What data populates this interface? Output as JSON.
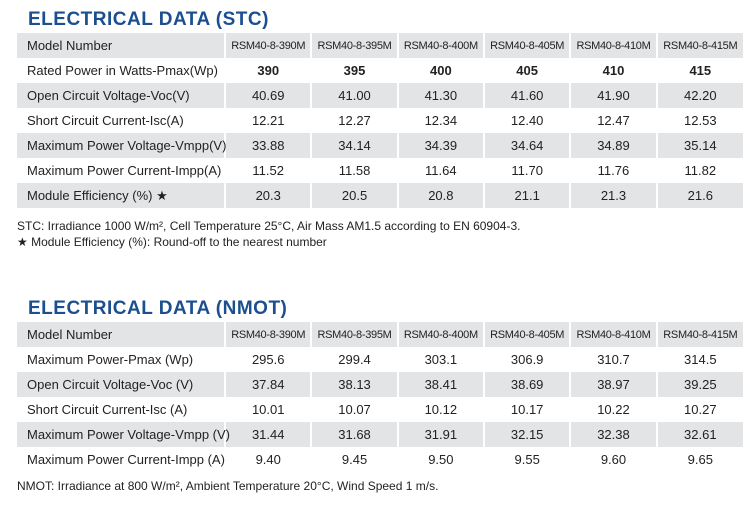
{
  "sections": [
    {
      "title": "ELECTRICAL DATA (STC)",
      "header": [
        "Model Number",
        "RSM40-8-390M",
        "RSM40-8-395M",
        "RSM40-8-400M",
        "RSM40-8-405M",
        "RSM40-8-410M",
        "RSM40-8-415M"
      ],
      "rows": [
        [
          "Rated Power in Watts-Pmax(Wp)",
          "390",
          "395",
          "400",
          "405",
          "410",
          "415"
        ],
        [
          "Open Circuit Voltage-Voc(V)",
          "40.69",
          "41.00",
          "41.30",
          "41.60",
          "41.90",
          "42.20"
        ],
        [
          "Short Circuit Current-Isc(A)",
          "12.21",
          "12.27",
          "12.34",
          "12.40",
          "12.47",
          "12.53"
        ],
        [
          "Maximum Power Voltage-Vmpp(V)",
          "33.88",
          "34.14",
          "34.39",
          "34.64",
          "34.89",
          "35.14"
        ],
        [
          "Maximum Power Current-Impp(A)",
          "11.52",
          "11.58",
          "11.64",
          "11.70",
          "11.76",
          "11.82"
        ],
        [
          "Module Efficiency (%) ★",
          "20.3",
          "20.5",
          "20.8",
          "21.1",
          "21.3",
          "21.6"
        ]
      ],
      "notes": [
        "STC: Irradiance 1000 W/m², Cell Temperature 25°C, Air Mass AM1.5 according to EN 60904-3.",
        "★ Module Efficiency (%): Round-off to the nearest number"
      ]
    },
    {
      "title": "ELECTRICAL DATA (NMOT)",
      "header": [
        "Model Number",
        "RSM40-8-390M",
        "RSM40-8-395M",
        "RSM40-8-400M",
        "RSM40-8-405M",
        "RSM40-8-410M",
        "RSM40-8-415M"
      ],
      "rows": [
        [
          "Maximum Power-Pmax (Wp)",
          "295.6",
          "299.4",
          "303.1",
          "306.9",
          "310.7",
          "314.5"
        ],
        [
          "Open Circuit Voltage-Voc (V)",
          "37.84",
          "38.13",
          "38.41",
          "38.69",
          "38.97",
          "39.25"
        ],
        [
          "Short Circuit Current-Isc (A)",
          "10.01",
          "10.07",
          "10.12",
          "10.17",
          "10.22",
          "10.27"
        ],
        [
          "Maximum Power Voltage-Vmpp (V)",
          "31.44",
          "31.68",
          "31.91",
          "32.15",
          "32.38",
          "32.61"
        ],
        [
          "Maximum Power Current-Impp (A)",
          "9.40",
          "9.45",
          "9.50",
          "9.55",
          "9.60",
          "9.65"
        ]
      ],
      "notes": [
        "NMOT: Irradiance at 800 W/m², Ambient Temperature 20°C, Wind Speed 1 m/s."
      ]
    }
  ]
}
